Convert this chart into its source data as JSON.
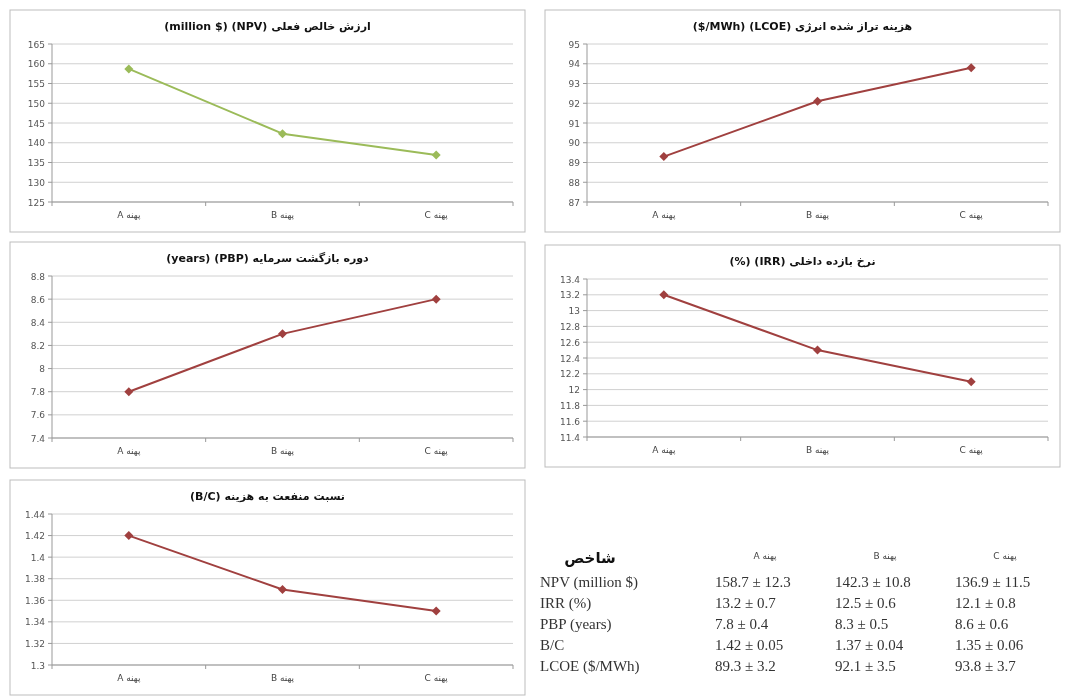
{
  "chart_data": [
    {
      "type": "line",
      "title": "ارزش خالص فعلی (NPV) (million $)",
      "categories": [
        "پهنه A",
        "پهنه B",
        "پهنه C"
      ],
      "series": [
        {
          "color": "#9bbb59",
          "values": [
            158.7,
            142.3,
            136.9
          ]
        }
      ],
      "ylim": [
        125,
        165
      ],
      "yticks": [
        125,
        130,
        135,
        140,
        145,
        150,
        155,
        160,
        165
      ],
      "grid": "y",
      "marker": "diamond"
    },
    {
      "type": "line",
      "title": "هزینه تراز شده انرژی (LCOE) ($/MWh)",
      "categories": [
        "پهنه A",
        "پهنه B",
        "پهنه C"
      ],
      "series": [
        {
          "color": "#a0403f",
          "values": [
            89.3,
            92.1,
            93.8
          ]
        }
      ],
      "ylim": [
        87,
        95
      ],
      "yticks": [
        87,
        88,
        89,
        90,
        91,
        92,
        93,
        94,
        95
      ],
      "grid": "y",
      "marker": "diamond"
    },
    {
      "type": "line",
      "title": "دوره بازگشت سرمایه (PBP) (years)",
      "categories": [
        "پهنه A",
        "پهنه B",
        "پهنه C"
      ],
      "series": [
        {
          "color": "#a0403f",
          "values": [
            7.8,
            8.3,
            8.6
          ]
        }
      ],
      "ylim": [
        7.4,
        8.8
      ],
      "yticks": [
        7.4,
        7.6,
        7.8,
        8,
        8.2,
        8.4,
        8.6,
        8.8
      ],
      "grid": "y",
      "marker": "diamond"
    },
    {
      "type": "line",
      "title": "نرخ بازده داخلی (IRR) (%)",
      "categories": [
        "پهنه A",
        "پهنه B",
        "پهنه C"
      ],
      "series": [
        {
          "color": "#a0403f",
          "values": [
            13.2,
            12.5,
            12.1
          ]
        }
      ],
      "ylim": [
        11.4,
        13.4
      ],
      "yticks": [
        11.4,
        11.6,
        11.8,
        12,
        12.2,
        12.4,
        12.6,
        12.8,
        13,
        13.2,
        13.4
      ],
      "grid": "y",
      "marker": "diamond"
    },
    {
      "type": "line",
      "title": "نسبت منفعت به هزینه (B/C)",
      "categories": [
        "پهنه A",
        "پهنه B",
        "پهنه C"
      ],
      "series": [
        {
          "color": "#a0403f",
          "values": [
            1.42,
            1.37,
            1.35
          ]
        }
      ],
      "ylim": [
        1.3,
        1.44
      ],
      "yticks": [
        1.3,
        1.32,
        1.34,
        1.36,
        1.38,
        1.4,
        1.42,
        1.44
      ],
      "grid": "y",
      "marker": "diamond"
    },
    {
      "type": "other",
      "title": "شاخص",
      "categories": [
        "پهنه A",
        "پهنه B",
        "پهنه C"
      ],
      "y_categories": [
        "NPV (million $)",
        "IRR (%)",
        "PBP (years)",
        "B/C",
        "LCOE ($/MWh)"
      ],
      "cell_labels": [
        [
          "158.7 ± 12.3",
          "142.3 ± 10.8",
          "136.9 ± 11.5"
        ],
        [
          "13.2 ± 0.7",
          "12.5 ± 0.6",
          "12.1 ± 0.8"
        ],
        [
          "7.8 ± 0.4",
          "8.3 ± 0.5",
          "8.6 ± 0.6"
        ],
        [
          "1.42 ± 0.05",
          "1.37 ± 0.04",
          "1.35 ± 0.06"
        ],
        [
          "89.3 ± 3.2",
          "92.1 ± 3.5",
          "93.8 ± 3.7"
        ]
      ]
    }
  ]
}
